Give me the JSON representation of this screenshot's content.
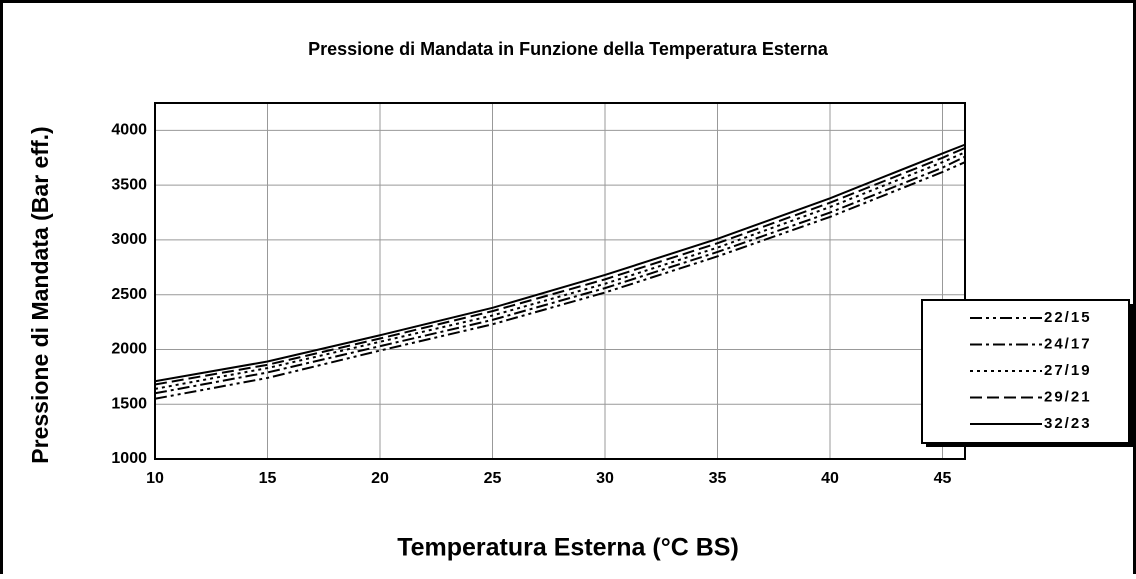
{
  "chart_data": {
    "type": "line",
    "title": "Pressione di Mandata in Funzione della Temperatura Esterna",
    "x_label": "Temperatura Esterna (°C BS)",
    "y_label": "Pressione di Mandata (Bar eff.)",
    "x": [
      10,
      15,
      20,
      25,
      30,
      35,
      40,
      45,
      46
    ],
    "series": [
      {
        "name": "22/15",
        "color": "#000000",
        "style": "dashdotdot",
        "values": [
          1550,
          1740,
          1990,
          2230,
          2520,
          2850,
          3210,
          3620,
          3710
        ]
      },
      {
        "name": "24/17",
        "color": "#000000",
        "style": "dashdot",
        "values": [
          1600,
          1790,
          2030,
          2270,
          2560,
          2890,
          3250,
          3660,
          3760
        ]
      },
      {
        "name": "27/19",
        "color": "#000000",
        "style": "dotted",
        "values": [
          1640,
          1830,
          2070,
          2310,
          2600,
          2930,
          3300,
          3710,
          3800
        ]
      },
      {
        "name": "29/21",
        "color": "#000000",
        "style": "dashed",
        "values": [
          1680,
          1860,
          2100,
          2350,
          2640,
          2970,
          3340,
          3750,
          3840
        ]
      },
      {
        "name": "32/23",
        "color": "#000000",
        "style": "solid",
        "values": [
          1710,
          1890,
          2130,
          2380,
          2680,
          3010,
          3380,
          3790,
          3870
        ]
      }
    ],
    "xlim": [
      10,
      46
    ],
    "xticks": [
      10,
      15,
      20,
      25,
      30,
      35,
      40,
      45
    ],
    "ylim": [
      1000,
      4250
    ],
    "yticks": [
      1000,
      1500,
      2000,
      2500,
      3000,
      3500,
      4000
    ],
    "grid": true,
    "legend": "right"
  }
}
